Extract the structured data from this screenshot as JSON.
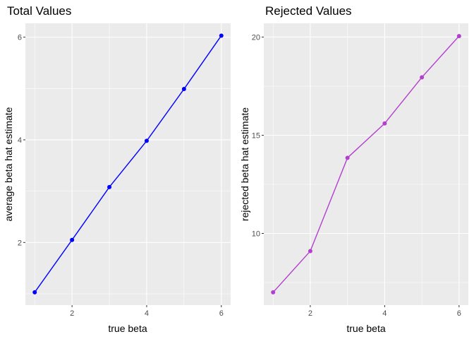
{
  "chart_data": [
    {
      "type": "line",
      "title": "Total Values",
      "xlabel": "true beta",
      "ylabel": "average beta hat estimate",
      "x": [
        1,
        2,
        3,
        4,
        5,
        6
      ],
      "series": [
        {
          "values": [
            1.03,
            2.05,
            3.08,
            3.98,
            4.99,
            6.03
          ],
          "color": "#0000ff"
        }
      ],
      "xlim": [
        0.75,
        6.25
      ],
      "ylim": [
        0.78,
        6.27
      ],
      "xticks": [
        2,
        4,
        6
      ],
      "yticks": [
        2,
        4,
        6
      ],
      "xtick_labels": [
        "2",
        "4",
        "6"
      ],
      "ytick_labels": [
        "2",
        "4",
        "6"
      ],
      "grid": true,
      "legend": "none",
      "background": "#ebebeb"
    },
    {
      "type": "line",
      "title": "Rejected Values",
      "xlabel": "true beta",
      "ylabel": "rejected beta hat estimate",
      "x": [
        1,
        2,
        3,
        4,
        5,
        6
      ],
      "series": [
        {
          "values": [
            7.0,
            9.1,
            13.85,
            15.6,
            17.95,
            20.05
          ],
          "color": "#b23fce"
        }
      ],
      "xlim": [
        0.75,
        6.25
      ],
      "ylim": [
        6.35,
        20.7
      ],
      "xticks": [
        2,
        4,
        6
      ],
      "yticks": [
        10,
        15,
        20
      ],
      "xtick_labels": [
        "2",
        "4",
        "6"
      ],
      "ytick_labels": [
        "10",
        "15",
        "20"
      ],
      "grid": true,
      "legend": "none",
      "background": "#ebebeb"
    }
  ]
}
